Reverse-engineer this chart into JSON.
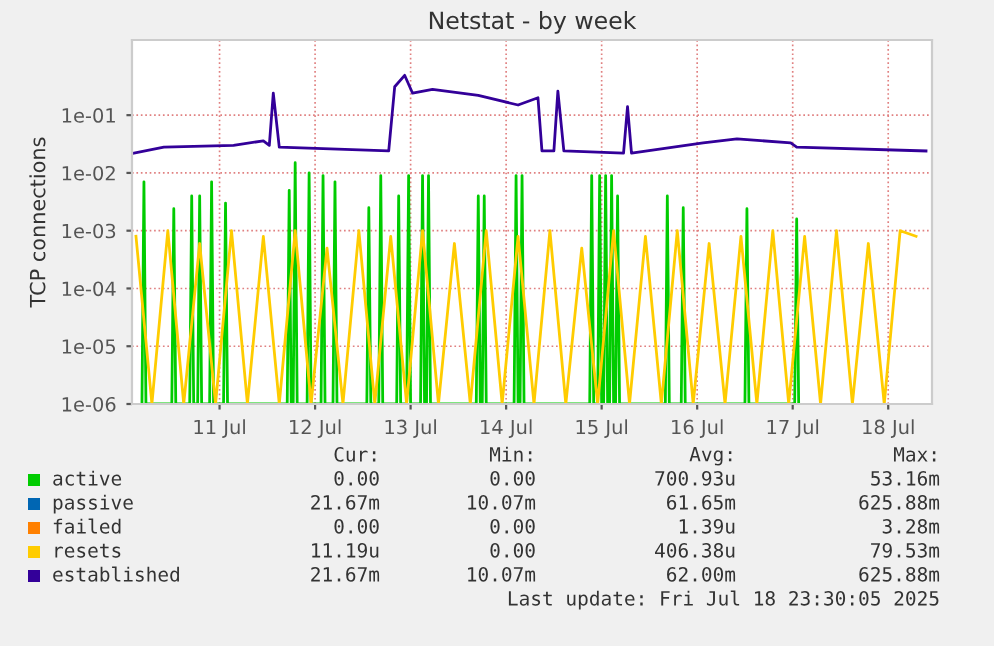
{
  "chart_data": {
    "type": "line",
    "title": "Netstat - by week",
    "ylabel": "TCP connections",
    "log": "y",
    "grid": true,
    "legend": "bottom left",
    "marker": "none",
    "line_style": "solid",
    "xlim": [
      "2025-07-10T14:00",
      "2025-07-18T23:00"
    ],
    "xticks": [
      {
        "value": "2025-07-11T12:00",
        "label": "11 Jul"
      },
      {
        "value": "2025-07-12T12:00",
        "label": "12 Jul"
      },
      {
        "value": "2025-07-13T12:00",
        "label": "13 Jul"
      },
      {
        "value": "2025-07-14T12:00",
        "label": "14 Jul"
      },
      {
        "value": "2025-07-15T12:00",
        "label": "15 Jul"
      },
      {
        "value": "2025-07-16T12:00",
        "label": "16 Jul"
      },
      {
        "value": "2025-07-17T12:00",
        "label": "17 Jul"
      },
      {
        "value": "2025-07-18T12:00",
        "label": "18 Jul"
      }
    ],
    "ylim": [
      1e-06,
      2
    ],
    "yticks": [
      {
        "value": 1e-06,
        "label": "1e-06"
      },
      {
        "value": 1e-05,
        "label": "1e-05"
      },
      {
        "value": 0.0001,
        "label": "1e-04"
      },
      {
        "value": 0.001,
        "label": "1e-03"
      },
      {
        "value": 0.01,
        "label": "1e-02"
      },
      {
        "value": 0.1,
        "label": "1e-01"
      }
    ],
    "series": [
      {
        "name": "active",
        "color": "#00cc00",
        "x": [
          "2025-07-10T16:30",
          "2025-07-10T17:00",
          "2025-07-10T17:30",
          "2025-07-11T00:00",
          "2025-07-11T00:30",
          "2025-07-11T01:00",
          "2025-07-11T04:30",
          "2025-07-11T05:00",
          "2025-07-11T05:30",
          "2025-07-11T06:30",
          "2025-07-11T07:00",
          "2025-07-11T07:30",
          "2025-07-11T09:30",
          "2025-07-11T10:00",
          "2025-07-11T10:30",
          "2025-07-11T13:00",
          "2025-07-11T13:30",
          "2025-07-11T14:00",
          "2025-07-12T05:00",
          "2025-07-12T05:30",
          "2025-07-12T06:00",
          "2025-07-12T06:30",
          "2025-07-12T07:00",
          "2025-07-12T07:30",
          "2025-07-12T10:00",
          "2025-07-12T10:30",
          "2025-07-12T11:00",
          "2025-07-12T13:30",
          "2025-07-12T14:00",
          "2025-07-12T14:30",
          "2025-07-12T16:30",
          "2025-07-12T17:00",
          "2025-07-12T17:30",
          "2025-07-13T01:00",
          "2025-07-13T01:30",
          "2025-07-13T02:00",
          "2025-07-13T04:00",
          "2025-07-13T04:30",
          "2025-07-13T05:00",
          "2025-07-13T08:30",
          "2025-07-13T09:00",
          "2025-07-13T09:30",
          "2025-07-13T11:00",
          "2025-07-13T11:30",
          "2025-07-13T12:00",
          "2025-07-13T14:30",
          "2025-07-13T15:00",
          "2025-07-13T15:30",
          "2025-07-13T16:00",
          "2025-07-13T16:30",
          "2025-07-13T17:00",
          "2025-07-14T04:30",
          "2025-07-14T05:00",
          "2025-07-14T05:30",
          "2025-07-14T06:00",
          "2025-07-14T06:30",
          "2025-07-14T07:00",
          "2025-07-14T14:00",
          "2025-07-14T14:30",
          "2025-07-14T15:00",
          "2025-07-14T15:30",
          "2025-07-14T16:00",
          "2025-07-14T16:30",
          "2025-07-15T09:00",
          "2025-07-15T09:30",
          "2025-07-15T10:00",
          "2025-07-15T11:00",
          "2025-07-15T11:30",
          "2025-07-15T12:00",
          "2025-07-15T12:30",
          "2025-07-15T13:00",
          "2025-07-15T13:30",
          "2025-07-15T14:00",
          "2025-07-15T14:30",
          "2025-07-15T15:00",
          "2025-07-15T15:30",
          "2025-07-15T16:00",
          "2025-07-15T16:30",
          "2025-07-16T04:00",
          "2025-07-16T04:30",
          "2025-07-16T05:00",
          "2025-07-16T08:00",
          "2025-07-16T08:30",
          "2025-07-16T09:00",
          "2025-07-17T00:00",
          "2025-07-17T00:30",
          "2025-07-17T01:00",
          "2025-07-17T12:30",
          "2025-07-17T13:00",
          "2025-07-17T13:30"
        ],
        "values": [
          1e-06,
          0.007,
          1e-06,
          1e-06,
          0.0024,
          1e-06,
          1e-06,
          0.004,
          1e-06,
          1e-06,
          0.004,
          1e-06,
          1e-06,
          0.007,
          1e-06,
          1e-06,
          0.003,
          1e-06,
          1e-06,
          0.005,
          1e-06,
          1e-06,
          0.015,
          1e-06,
          1e-06,
          0.01,
          1e-06,
          1e-06,
          0.009,
          1e-06,
          1e-06,
          0.007,
          1e-06,
          1e-06,
          0.0025,
          1e-06,
          1e-06,
          0.009,
          1e-06,
          1e-06,
          0.004,
          1e-06,
          1e-06,
          0.009,
          1e-06,
          1e-06,
          0.009,
          1e-06,
          1e-06,
          0.009,
          1e-06,
          1e-06,
          0.004,
          1e-06,
          1e-06,
          0.004,
          1e-06,
          1e-06,
          0.009,
          1e-06,
          1e-06,
          0.009,
          1e-06,
          1e-06,
          0.009,
          1e-06,
          1e-06,
          0.009,
          1e-06,
          1e-06,
          0.009,
          1e-06,
          1e-06,
          0.009,
          1e-06,
          1e-06,
          0.004,
          1e-06,
          1e-06,
          0.004,
          1e-06,
          1e-06,
          0.0025,
          1e-06,
          1e-06,
          0.0024,
          1e-06,
          1e-06,
          0.0016,
          1e-06
        ]
      },
      {
        "name": "passive",
        "color": "#0066b3"
      },
      {
        "name": "failed",
        "color": "#ff8000"
      },
      {
        "name": "resets",
        "color": "#ffcc00",
        "x": [
          "2025-07-10T15:00",
          "2025-07-10T19:00",
          "2025-07-10T23:00",
          "2025-07-11T03:00",
          "2025-07-11T07:00",
          "2025-07-11T11:00",
          "2025-07-11T15:00",
          "2025-07-11T19:00",
          "2025-07-11T23:00",
          "2025-07-12T03:00",
          "2025-07-12T07:00",
          "2025-07-12T11:00",
          "2025-07-12T15:00",
          "2025-07-12T19:00",
          "2025-07-12T23:00",
          "2025-07-13T03:00",
          "2025-07-13T07:00",
          "2025-07-13T11:00",
          "2025-07-13T15:00",
          "2025-07-13T19:00",
          "2025-07-13T23:00",
          "2025-07-14T03:00",
          "2025-07-14T07:00",
          "2025-07-14T11:00",
          "2025-07-14T15:00",
          "2025-07-14T19:00",
          "2025-07-14T23:00",
          "2025-07-15T03:00",
          "2025-07-15T07:00",
          "2025-07-15T11:00",
          "2025-07-15T15:00",
          "2025-07-15T19:00",
          "2025-07-15T23:00",
          "2025-07-16T03:00",
          "2025-07-16T07:00",
          "2025-07-16T11:00",
          "2025-07-16T15:00",
          "2025-07-16T19:00",
          "2025-07-16T23:00",
          "2025-07-17T03:00",
          "2025-07-17T07:00",
          "2025-07-17T11:00",
          "2025-07-17T15:00",
          "2025-07-17T19:00",
          "2025-07-17T23:00",
          "2025-07-18T03:00",
          "2025-07-18T07:00",
          "2025-07-18T11:00",
          "2025-07-18T15:00",
          "2025-07-18T19:00"
        ],
        "values": [
          0.0008,
          1e-06,
          0.001,
          1e-06,
          0.0006,
          1e-06,
          0.001,
          1e-06,
          0.0008,
          1e-06,
          0.001,
          1e-06,
          0.0005,
          1e-06,
          0.001,
          1e-06,
          0.0008,
          1e-06,
          0.001,
          1e-06,
          0.0006,
          1e-06,
          0.001,
          1e-06,
          0.0008,
          1e-06,
          0.001,
          1e-06,
          0.0005,
          1e-06,
          0.001,
          1e-06,
          0.0008,
          1e-06,
          0.001,
          1e-06,
          0.0006,
          1e-06,
          0.0008,
          1e-06,
          0.001,
          1e-06,
          0.0008,
          1e-06,
          0.001,
          1e-06,
          0.0006,
          1e-06,
          0.001,
          0.0008
        ]
      },
      {
        "name": "established",
        "color": "#330099",
        "x": [
          "2025-07-10T14:30",
          "2025-07-10T22:00",
          "2025-07-11T15:30",
          "2025-07-11T23:00",
          "2025-07-12T00:30",
          "2025-07-12T01:30",
          "2025-07-12T03:00",
          "2025-07-13T06:30",
          "2025-07-13T08:00",
          "2025-07-13T10:30",
          "2025-07-13T12:30",
          "2025-07-13T17:30",
          "2025-07-14T05:00",
          "2025-07-14T15:00",
          "2025-07-14T20:00",
          "2025-07-14T21:00",
          "2025-07-15T00:00",
          "2025-07-15T01:00",
          "2025-07-15T02:30",
          "2025-07-15T17:30",
          "2025-07-15T18:30",
          "2025-07-15T19:30",
          "2025-07-16T13:30",
          "2025-07-16T22:00",
          "2025-07-17T11:30",
          "2025-07-17T13:00",
          "2025-07-18T21:30"
        ],
        "values": [
          0.022,
          0.028,
          0.03,
          0.036,
          0.03,
          0.24,
          0.028,
          0.024,
          0.31,
          0.49,
          0.24,
          0.28,
          0.22,
          0.15,
          0.2,
          0.024,
          0.024,
          0.26,
          0.024,
          0.022,
          0.14,
          0.022,
          0.033,
          0.039,
          0.033,
          0.028,
          0.024
        ]
      }
    ],
    "annotations": [
      "Cur:",
      "Min:",
      "Avg:",
      "Max:",
      "0.00",
      "0.00",
      "700.93u",
      "53.16m",
      "21.67m",
      "10.07m",
      "61.65m",
      "625.88m",
      "0.00",
      "0.00",
      "1.39u",
      "3.28m",
      "11.19u",
      "0.00",
      "406.38u",
      "79.53m",
      "21.67m",
      "10.07m",
      "62.00m",
      "625.88m",
      "Last update: Fri Jul 18 23:30:05 2025"
    ]
  }
}
